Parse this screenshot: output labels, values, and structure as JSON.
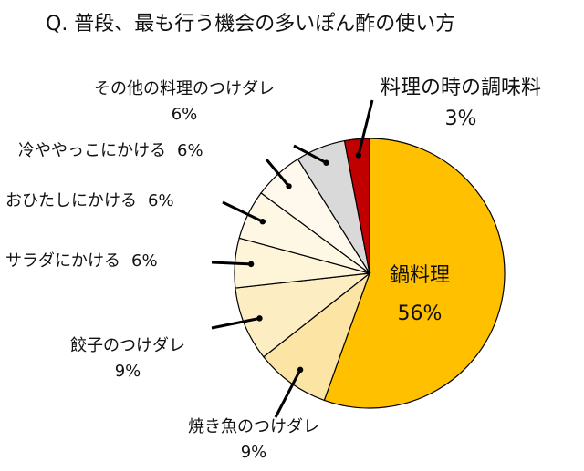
{
  "chart_data": {
    "type": "pie",
    "title": "Q. 普段、最も行う機会の多いぽん酢の使い方",
    "slices": [
      {
        "label": "鍋料理",
        "value": 56,
        "display": "56%",
        "color": "#FFC000"
      },
      {
        "label": "焼き魚のつけダレ",
        "value": 9,
        "display": "9%",
        "color": "#FCE5A4"
      },
      {
        "label": "餃子のつけダレ",
        "value": 9,
        "display": "9%",
        "color": "#FDEDC2"
      },
      {
        "label": "サラダにかける",
        "value": 6,
        "display": "6%",
        "color": "#FEF4D8"
      },
      {
        "label": "おひたしにかける",
        "value": 6,
        "display": "6%",
        "color": "#FEF7E3"
      },
      {
        "label": "冷ややっこにかける",
        "value": 6,
        "display": "6%",
        "color": "#FEF9EC"
      },
      {
        "label": "その他の料理のつけダレ",
        "value": 6,
        "display": "6%",
        "color": "#D9D9D9"
      },
      {
        "label": "料理の時の調味料",
        "value": 3,
        "display": "3%",
        "color": "#C00000"
      }
    ],
    "start_angle_deg": 0,
    "direction": "clockwise",
    "legend": "none (callout labels)"
  }
}
